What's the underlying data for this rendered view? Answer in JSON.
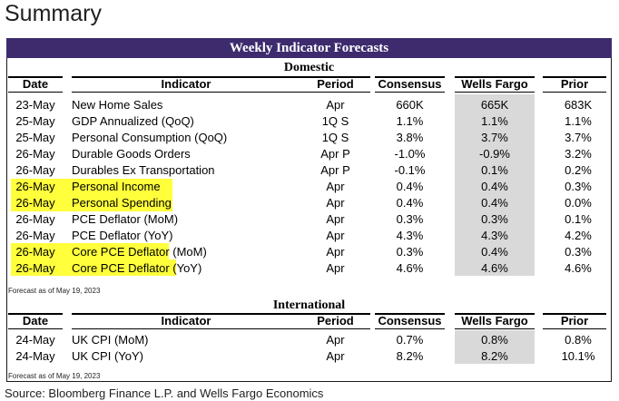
{
  "page": {
    "title": "Summary",
    "source": "Source: Bloomberg Finance L.P. and Wells Fargo Economics"
  },
  "table": {
    "title": "Weekly Indicator Forecasts",
    "columns": [
      "Date",
      "Indicator",
      "Period",
      "Consensus",
      "Wells Fargo",
      "Prior"
    ],
    "highlight_color": "#ffff3c",
    "banner_color": "#3d2b6e",
    "wells_fargo_shade": "#d9d9d9",
    "domestic": {
      "title": "Domestic",
      "rows": [
        {
          "date": "23-May",
          "indicator": "New Home Sales",
          "period": "Apr",
          "consensus": "660K",
          "wells_fargo": "665K",
          "prior": "683K",
          "highlighted": false
        },
        {
          "date": "25-May",
          "indicator": "GDP Annualized (QoQ)",
          "period": "1Q S",
          "consensus": "1.1%",
          "wells_fargo": "1.1%",
          "prior": "1.1%",
          "highlighted": false
        },
        {
          "date": "25-May",
          "indicator": "Personal Consumption (QoQ)",
          "period": "1Q S",
          "consensus": "3.8%",
          "wells_fargo": "3.7%",
          "prior": "3.7%",
          "highlighted": false
        },
        {
          "date": "26-May",
          "indicator": "Durable Goods Orders",
          "period": "Apr P",
          "consensus": "-1.0%",
          "wells_fargo": "-0.9%",
          "prior": "3.2%",
          "highlighted": false
        },
        {
          "date": "26-May",
          "indicator": "Durables Ex Transportation",
          "period": "Apr P",
          "consensus": "-0.1%",
          "wells_fargo": "0.1%",
          "prior": "0.2%",
          "highlighted": false
        },
        {
          "date": "26-May",
          "indicator": "Personal Income",
          "period": "Apr",
          "consensus": "0.4%",
          "wells_fargo": "0.4%",
          "prior": "0.3%",
          "highlighted": true
        },
        {
          "date": "26-May",
          "indicator": "Personal Spending",
          "period": "Apr",
          "consensus": "0.4%",
          "wells_fargo": "0.4%",
          "prior": "0.0%",
          "highlighted": true
        },
        {
          "date": "26-May",
          "indicator": "PCE Deflator (MoM)",
          "period": "Apr",
          "consensus": "0.3%",
          "wells_fargo": "0.3%",
          "prior": "0.1%",
          "highlighted": false
        },
        {
          "date": "26-May",
          "indicator": "PCE Deflator (YoY)",
          "period": "Apr",
          "consensus": "4.3%",
          "wells_fargo": "4.3%",
          "prior": "4.2%",
          "highlighted": false
        },
        {
          "date": "26-May",
          "indicator": "Core PCE Deflator (MoM)",
          "period": "Apr",
          "consensus": "0.3%",
          "wells_fargo": "0.4%",
          "prior": "0.3%",
          "highlighted": true
        },
        {
          "date": "26-May",
          "indicator": "Core PCE Deflator (YoY)",
          "period": "Apr",
          "consensus": "4.6%",
          "wells_fargo": "4.6%",
          "prior": "4.6%",
          "highlighted": true
        }
      ],
      "footnote": "Forecast as of May 19, 2023"
    },
    "international": {
      "title": "International",
      "rows": [
        {
          "date": "24-May",
          "indicator": "UK CPI (MoM)",
          "period": "Apr",
          "consensus": "0.7%",
          "wells_fargo": "0.8%",
          "prior": "0.8%",
          "highlighted": false
        },
        {
          "date": "24-May",
          "indicator": "UK CPI (YoY)",
          "period": "Apr",
          "consensus": "8.2%",
          "wells_fargo": "8.2%",
          "prior": "10.1%",
          "highlighted": false
        }
      ],
      "footnote": "Forecast as of May 19, 2023"
    }
  }
}
